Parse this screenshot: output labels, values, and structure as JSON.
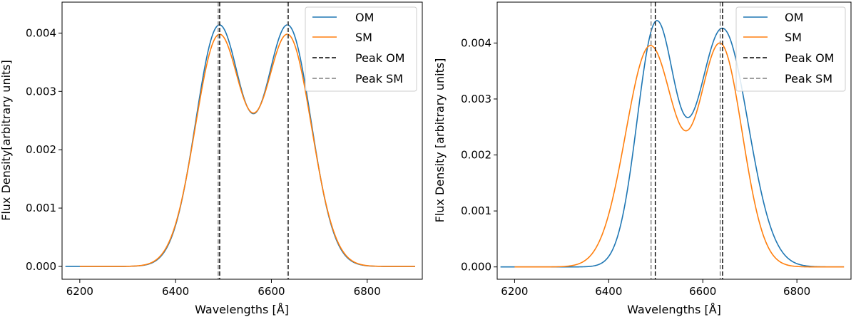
{
  "chart_data": [
    {
      "type": "line",
      "panel": "left",
      "xlabel": "Wavelengths [Å]",
      "ylabel": "Flux Density[arbitrary units]",
      "xlim": [
        6163,
        6915
      ],
      "ylim": [
        -0.00022,
        0.00453
      ],
      "xticks": [
        6200,
        6400,
        6600,
        6800
      ],
      "xtick_labels": [
        "6200",
        "6400",
        "6600",
        "6800"
      ],
      "yticks": [
        0.0,
        0.001,
        0.002,
        0.003,
        0.004
      ],
      "ytick_labels": [
        "0.000",
        "0.001",
        "0.002",
        "0.003",
        "0.004"
      ],
      "grid": false,
      "legend_position": "top-right",
      "legend": [
        "OM",
        "SM",
        "Peak OM",
        "Peak SM"
      ],
      "series": [
        {
          "name": "OM",
          "color": "#1f77b4",
          "model": {
            "mu1": 6490,
            "s1": 48,
            "mu2": 6635,
            "s2": 48,
            "amp": 0.00414,
            "xmin": 6170,
            "xmax": 6900
          }
        },
        {
          "name": "SM",
          "color": "#ff7f0e",
          "model": {
            "mu1": 6490,
            "s1": 49,
            "mu2": 6635,
            "s2": 49,
            "amp": 0.00398,
            "xmin": 6200,
            "xmax": 6900
          }
        }
      ],
      "peak_lines": [
        {
          "name": "Peak OM",
          "x": 6492,
          "color": "#000000"
        },
        {
          "name": "Peak OM",
          "x": 6635,
          "color": "#000000"
        },
        {
          "name": "Peak SM",
          "x": 6489,
          "color": "#7f7f7f"
        },
        {
          "name": "Peak SM",
          "x": 6634,
          "color": "#7f7f7f"
        }
      ]
    },
    {
      "type": "line",
      "panel": "right",
      "xlabel": "Wavelengths [Å]",
      "ylabel": "Flux Density [arbitrary units]",
      "xlim": [
        6163,
        6915
      ],
      "ylim": [
        -0.00022,
        0.00473
      ],
      "xticks": [
        6200,
        6400,
        6600,
        6800
      ],
      "xtick_labels": [
        "6200",
        "6400",
        "6600",
        "6800"
      ],
      "yticks": [
        0.0,
        0.001,
        0.002,
        0.003,
        0.004
      ],
      "ytick_labels": [
        "0.000",
        "0.001",
        "0.002",
        "0.003",
        "0.004"
      ],
      "grid": false,
      "legend_position": "top-right",
      "legend": [
        "OM",
        "SM",
        "Peak OM",
        "Peak SM"
      ],
      "series": [
        {
          "name": "OM",
          "color": "#1f77b4",
          "model": {
            "mu1": 6500,
            "s1": 40,
            "mu2": 6642,
            "s2": 54,
            "amp": 0.0044,
            "xmin": 6170,
            "xmax": 6900
          }
        },
        {
          "name": "SM",
          "color": "#ff7f0e",
          "model": {
            "mu1": 6488,
            "s1": 52,
            "mu2": 6638,
            "s2": 46,
            "amp": 0.004,
            "xmin": 6200,
            "xmax": 6900
          }
        }
      ],
      "peak_lines": [
        {
          "name": "Peak OM",
          "x": 6499,
          "color": "#000000"
        },
        {
          "name": "Peak OM",
          "x": 6642,
          "color": "#000000"
        },
        {
          "name": "Peak SM",
          "x": 6490,
          "color": "#7f7f7f"
        },
        {
          "name": "Peak SM",
          "x": 6637,
          "color": "#7f7f7f"
        }
      ]
    }
  ]
}
